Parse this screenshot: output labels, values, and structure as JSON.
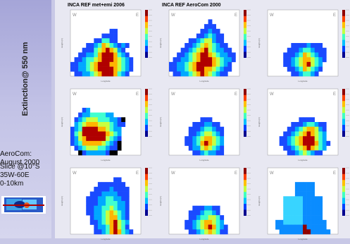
{
  "sidebar": {
    "vertical_label": "Extinction@ 550 nm",
    "aerocom_line1": "AeroCom:",
    "aerocom_line2": "August 2000",
    "slice_line1": "Slice @10°S",
    "slice_line2": "35W-60E",
    "slice_line3": "0-10km"
  },
  "headers": [
    "INCA REF met+emi 2006",
    "INCA REF AeroCom 2000"
  ],
  "chart_data": {
    "type": "heatmap",
    "panel_labels": {
      "left": "W",
      "right": "E"
    },
    "xlabel": "Longitude",
    "ylabel": "Height (m)",
    "colorscale": [
      "#00008f",
      "#0040ff",
      "#00c0ff",
      "#40ffc0",
      "#c0ff40",
      "#ffc000",
      "#ff4000",
      "#8f0000"
    ],
    "panels": [
      {
        "name": "p1",
        "rows": [
          "..................",
          "..................",
          "..................",
          "..................",
          "..........33......",
          "........3333......",
          "......335533......",
          "....33457654343...",
          "...33356787643....",
          "..3344578887543...",
          ".334556788876543..",
          "3344567888776543..",
          "3344567888876543..",
          ".33445678887543..."
        ]
      },
      {
        "name": "p2",
        "rows": [
          "..................",
          "..................",
          "..........3.......",
          ".........333......",
          "........33433.....",
          ".......3345433....",
          ".....334566433....",
          "....33456765433...",
          "...3345678654433..",
          "..334567887654433.",
          ".3344567888765443.",
          "3344567888876543..",
          "3344567887765433..",
          ".33445678765433..."
        ]
      },
      {
        "name": "p3",
        "rows": [
          "..................",
          "..................",
          "..................",
          "..................",
          "..................",
          "..................",
          "..................",
          "......33334333....",
          ".....3334554333...",
          "....33345765433...",
          "....33456776543...",
          "....3345678654....",
          ".....334576543....",
          "......3345543....."
        ]
      },
      {
        "name": "p4",
        "rows": [
          "..................",
          "..................",
          "..................",
          "..................",
          "...34.............",
          "..344555544.......",
          ".3456665554432....",
          ".4567776665433....",
          "3458888776544.....",
          "3568888887654.....",
          "3467888886543.....",
          "3457777765432.....",
          ".345666554332.....",
          "..2344444322......"
        ]
      },
      {
        "name": "p5",
        "rows": [
          "..................",
          "..................",
          "..................",
          "..................",
          "..................",
          "..................",
          "........333.......",
          "......3334433.....",
          ".....333455433....",
          ".....334566543....",
          "....3345677654....",
          "....3345787654....",
          ".....344676543....",
          "......33454433...."
        ]
      },
      {
        "name": "p6",
        "rows": [
          "..................",
          "..................",
          "..................",
          "..................",
          "..................",
          "..................",
          "........3333......",
          "......333455433...",
          ".....3345677643...",
          "....33456787654...",
          "...334567888654...",
          "...3345678887543..",
          "....33456787654...",
          ".....334565433...."
        ]
      },
      {
        "name": "p7",
        "rows": [
          "..................",
          "..................",
          "...........33.....",
          ".......3333333....",
          "......333343333...",
          ".....3334444333...",
          "....33344554433...",
          "....33344555443...",
          "....33445565443...",
          "....33445676543...",
          ".....3445677543...",
          ".....3345678654...",
          "......344578653...",
          "......3345787543.."
        ]
      },
      {
        "name": "p8",
        "rows": [
          "..................",
          "..................",
          "..................",
          "..................",
          "..................",
          "..................",
          "..................",
          "..................",
          "......3334433.....",
          ".....33345543.....",
          ".....334556653....",
          "....3345677654....",
          "....33456787543...",
          ".....3345676533..."
        ]
      },
      {
        "name": "p9",
        "rows": [
          "..................",
          "..................",
          "..................",
          ".......11111......",
          ".......11111......",
          ".......11111......",
          "....2222211111....",
          "....2222211111....",
          "....2222211111....",
          "....2222211111....",
          "....2222211111....",
          "..1122222111111...",
          "..1111111811111...",
          "...1111118811111.."
        ]
      }
    ]
  }
}
